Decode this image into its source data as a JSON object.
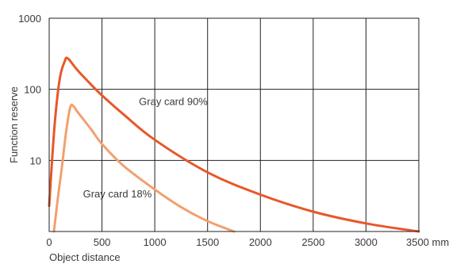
{
  "chart_data": {
    "type": "line",
    "title": "",
    "xlabel": "Object distance",
    "ylabel": "Function reserve",
    "x_unit": "mm",
    "xlim": [
      0,
      3500
    ],
    "ylim": [
      1,
      1000
    ],
    "y_scale": "log",
    "x_ticks": [
      0,
      500,
      1000,
      1500,
      2000,
      2500,
      3000,
      3500
    ],
    "x_tick_labels": [
      "0",
      "500",
      "1000",
      "1500",
      "2000",
      "2500",
      "3000",
      "3500 mm"
    ],
    "y_ticks": [
      10,
      100,
      1000
    ],
    "y_tick_labels": [
      "10",
      "100",
      "1000"
    ],
    "grid": true,
    "legend": "none",
    "series": [
      {
        "name": "Gray card 90%",
        "color": "#e8572a",
        "x": [
          0,
          50,
          100,
          150,
          170,
          200,
          250,
          300,
          400,
          500,
          700,
          1000,
          1500,
          2000,
          2500,
          3000,
          3500
        ],
        "y": [
          2.3,
          30,
          140,
          255,
          275,
          250,
          200,
          165,
          115,
          82,
          45,
          19.5,
          6.8,
          3.3,
          1.9,
          1.3,
          1.0
        ]
      },
      {
        "name": "Gray card 18%",
        "color": "#f2a06f",
        "x": [
          45,
          80,
          120,
          160,
          200,
          230,
          260,
          300,
          400,
          500,
          700,
          1000,
          1250,
          1500,
          1750
        ],
        "y": [
          1.0,
          2.8,
          8,
          25,
          56,
          58,
          50,
          42,
          27,
          17,
          8.5,
          3.9,
          2.2,
          1.4,
          1.0
        ]
      }
    ],
    "annotations": [
      {
        "text": "Gray card 90%",
        "x": 850,
        "y": 60
      },
      {
        "text": "Gray card 18%",
        "x": 320,
        "y": 3.0
      }
    ]
  }
}
